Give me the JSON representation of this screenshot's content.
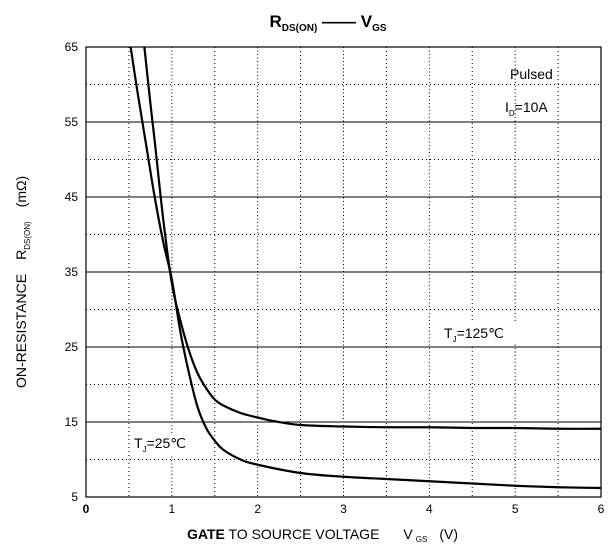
{
  "chart_data": {
    "type": "line",
    "title": {
      "left_main": "R",
      "left_sub": "DS(ON)",
      "dash": "——",
      "right_main": "V",
      "right_sub": "GS"
    },
    "xlabel": {
      "bold": "GATE",
      "rest": " TO SOURCE VOLTAGE",
      "sym": "V",
      "sym_sub": "GS",
      "unit": "(V)"
    },
    "ylabel": {
      "text": "ON-RESISTANCE",
      "sym": "R",
      "sym_sub": "DS(ON)",
      "unit": "(mΩ)"
    },
    "xlim": [
      0,
      6
    ],
    "ylim": [
      5,
      65
    ],
    "x_ticks": [
      "0",
      "1",
      "2",
      "3",
      "4",
      "5",
      "6"
    ],
    "y_ticks": [
      "5",
      "15",
      "25",
      "35",
      "45",
      "55",
      "65"
    ],
    "grid": true,
    "annotations": {
      "pulsed": "Pulsed",
      "id_main": "I",
      "id_sub": "D",
      "id_rest": "=10A"
    },
    "series": [
      {
        "label_main": "T",
        "label_sub": "J",
        "label_rest": "=25℃",
        "x": [
          0.52,
          0.6,
          0.7,
          0.8,
          0.9,
          1.0,
          1.1,
          1.2,
          1.3,
          1.4,
          1.5,
          1.6,
          1.8,
          2.0,
          2.5,
          3.0,
          3.5,
          4.0,
          4.5,
          5.0,
          5.5,
          6.0
        ],
        "y": [
          65.0,
          59.0,
          52.0,
          45.0,
          39.0,
          34.0,
          27.0,
          21.5,
          17.0,
          14.2,
          12.5,
          11.3,
          10.0,
          9.3,
          8.2,
          7.7,
          7.4,
          7.1,
          6.8,
          6.5,
          6.3,
          6.2
        ]
      },
      {
        "label_main": "T",
        "label_sub": "J",
        "label_rest": "=125℃",
        "x": [
          0.68,
          0.75,
          0.8,
          0.9,
          1.0,
          1.1,
          1.2,
          1.3,
          1.4,
          1.5,
          1.6,
          1.8,
          2.0,
          2.2,
          2.5,
          3.0,
          3.5,
          4.0,
          4.5,
          5.0,
          5.5,
          6.0
        ],
        "y": [
          65.0,
          57.5,
          52.5,
          42.0,
          33.5,
          28.5,
          24.5,
          21.5,
          19.5,
          18.0,
          17.2,
          16.2,
          15.6,
          15.1,
          14.6,
          14.4,
          14.3,
          14.3,
          14.2,
          14.2,
          14.1,
          14.1
        ]
      }
    ]
  }
}
